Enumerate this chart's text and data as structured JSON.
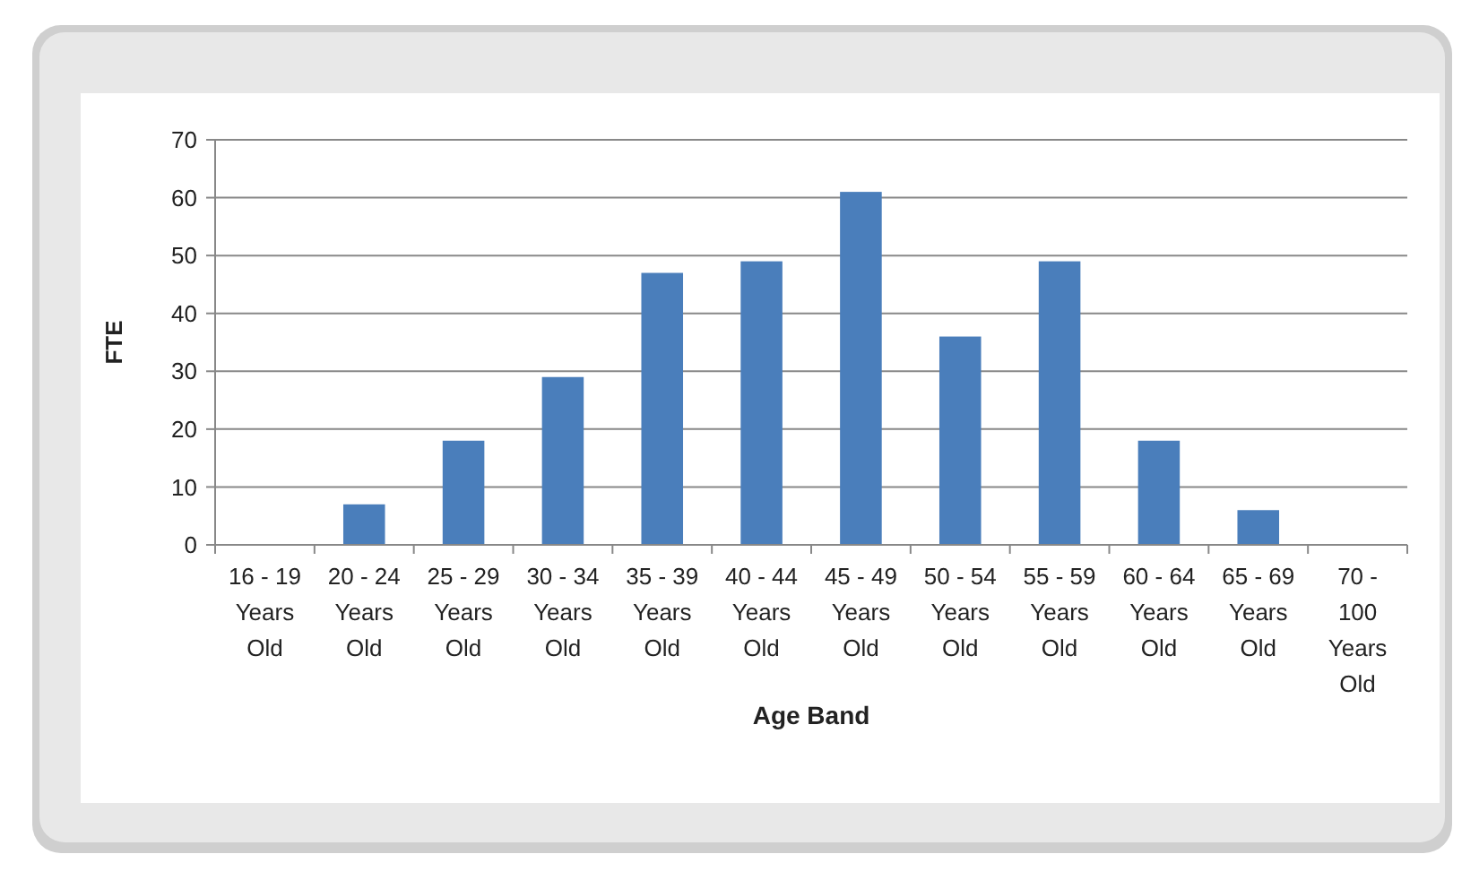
{
  "chart_data": {
    "type": "bar",
    "xlabel": "Age Band",
    "ylabel": "FTE",
    "categories": [
      "16 - 19 Years Old",
      "20 - 24 Years Old",
      "25 - 29 Years Old",
      "30 - 34 Years Old",
      "35 - 39 Years Old",
      "40 - 44 Years Old",
      "45 - 49 Years Old",
      "50 - 54 Years Old",
      "55 - 59 Years Old",
      "60 - 64 Years Old",
      "65 - 69 Years Old",
      "70 - 100 Years Old"
    ],
    "values": [
      0,
      7,
      18,
      29,
      47,
      49,
      61,
      36,
      49,
      18,
      6,
      0
    ],
    "color": "#4a7ebb",
    "ylim": [
      0,
      70
    ],
    "yticks": [
      0,
      10,
      20,
      30,
      40,
      50,
      60,
      70
    ],
    "grid": "y"
  }
}
